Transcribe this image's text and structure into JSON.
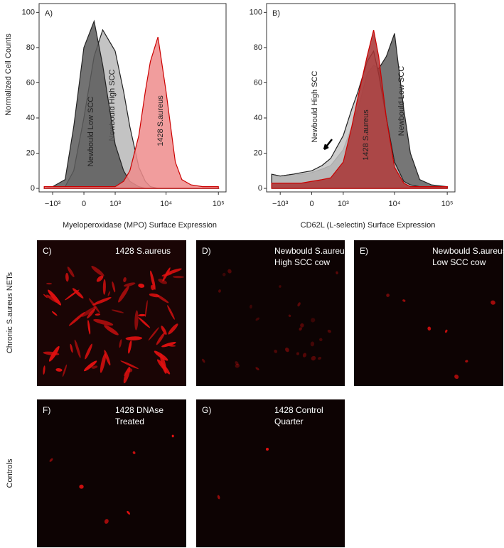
{
  "chart_data": [
    {
      "type": "area",
      "panel": "A)",
      "x_label": "Myeloperoxidase (MPO) Surface Expression",
      "y_label": "Normalized Cell Counts",
      "xscale": "biexponential",
      "xlim": [
        -1900,
        140000
      ],
      "ylim": [
        -2,
        105
      ],
      "xticks": [
        {
          "value": -1000,
          "label": "−10³"
        },
        0,
        {
          "value": 1000,
          "label": "10³"
        },
        {
          "value": 10000,
          "label": "10⁴"
        },
        {
          "value": 100000,
          "label": "10⁵"
        }
      ],
      "yticks": [
        0,
        20,
        40,
        60,
        80,
        100
      ],
      "x": [
        -1500,
        -1000,
        -500,
        -250,
        0,
        250,
        500,
        1000,
        1500,
        2000,
        3000,
        4000,
        5000,
        7000,
        10000,
        15000,
        20000,
        30000,
        50000,
        100000
      ],
      "series": [
        {
          "name": "Newbould High SCC",
          "color": "#b8b8b8",
          "values": [
            0,
            0,
            1,
            10,
            40,
            75,
            90,
            78,
            55,
            35,
            12,
            4,
            1,
            0,
            0,
            0,
            0,
            0,
            0,
            0
          ]
        },
        {
          "name": "Newbould Low SCC",
          "color": "#5a5a5a",
          "values": [
            0,
            1,
            5,
            35,
            80,
            95,
            70,
            25,
            10,
            4,
            1,
            0,
            0,
            0,
            0,
            0,
            0,
            0,
            0,
            0
          ]
        },
        {
          "name": "1428 S.aureus",
          "color": "#ee8c8c",
          "values": [
            1,
            1,
            1,
            1,
            1,
            1,
            1,
            1,
            4,
            10,
            30,
            55,
            72,
            86,
            55,
            15,
            5,
            2,
            1,
            1
          ]
        }
      ]
    },
    {
      "type": "area",
      "panel": "B)",
      "x_label": "CD62L (L-selectin) Surface Expression",
      "xscale": "biexponential",
      "xlim": [
        -1900,
        140000
      ],
      "ylim": [
        -2,
        105
      ],
      "xticks": [
        {
          "value": -1000,
          "label": "−10³"
        },
        0,
        {
          "value": 1000,
          "label": "10³"
        },
        {
          "value": 10000,
          "label": "10⁴"
        },
        {
          "value": 100000,
          "label": "10⁵"
        }
      ],
      "yticks": [
        0,
        20,
        40,
        60,
        80,
        100
      ],
      "x": [
        -1500,
        -1000,
        -500,
        -250,
        0,
        250,
        500,
        1000,
        1500,
        2000,
        3000,
        4000,
        5000,
        7000,
        10000,
        15000,
        20000,
        30000,
        50000,
        100000
      ],
      "series": [
        {
          "name": "Newbould Low SCC",
          "color": "#5e5e5e",
          "values": [
            8,
            7,
            8,
            8,
            9,
            11,
            13,
            22,
            35,
            45,
            65,
            70,
            68,
            75,
            88,
            45,
            20,
            5,
            2,
            1
          ]
        },
        {
          "name": "Newbould High SCC",
          "color": "#c4c4c4",
          "values": [
            8,
            7,
            8,
            9,
            10,
            13,
            17,
            30,
            45,
            55,
            72,
            78,
            65,
            40,
            15,
            4,
            2,
            1,
            1,
            1
          ]
        },
        {
          "name": "1428 S.aureus",
          "color": "#a83232",
          "values": [
            3,
            3,
            3,
            3,
            4,
            5,
            6,
            15,
            35,
            52,
            75,
            90,
            75,
            40,
            12,
            3,
            1,
            1,
            1,
            1
          ]
        }
      ]
    }
  ],
  "row_labels": [
    "Chronic S.aureus NETs",
    "Controls"
  ],
  "panels": [
    {
      "label": "C)",
      "lines": [
        "1428 S.aureus"
      ]
    },
    {
      "label": "D)",
      "lines": [
        "Newbould S.aureus",
        "High SCC cow"
      ]
    },
    {
      "label": "E)",
      "lines": [
        "Newbould S.aureus",
        "Low SCC cow"
      ]
    },
    {
      "label": "F)",
      "lines": [
        "1428 DNAse",
        "Treated"
      ]
    },
    {
      "label": "G)",
      "lines": [
        "1428 Control",
        "Quarter"
      ]
    }
  ]
}
